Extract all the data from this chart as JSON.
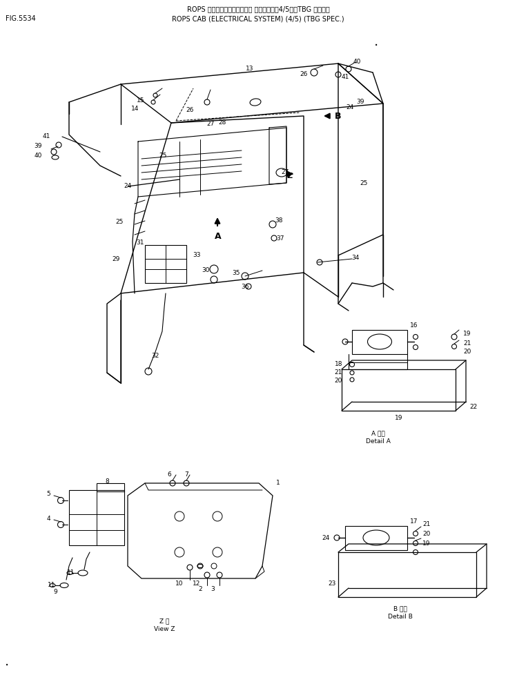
{
  "title_line1": "ROPS キャブ（エレクトリカル システム）（4/5）（TBG ショウ）",
  "title_line2": "ROPS CAB (ELECTRICAL SYSTEM) (4/5) (TBG SPEC.)",
  "fig_number": "FIG.5534",
  "bg": "#ffffff"
}
